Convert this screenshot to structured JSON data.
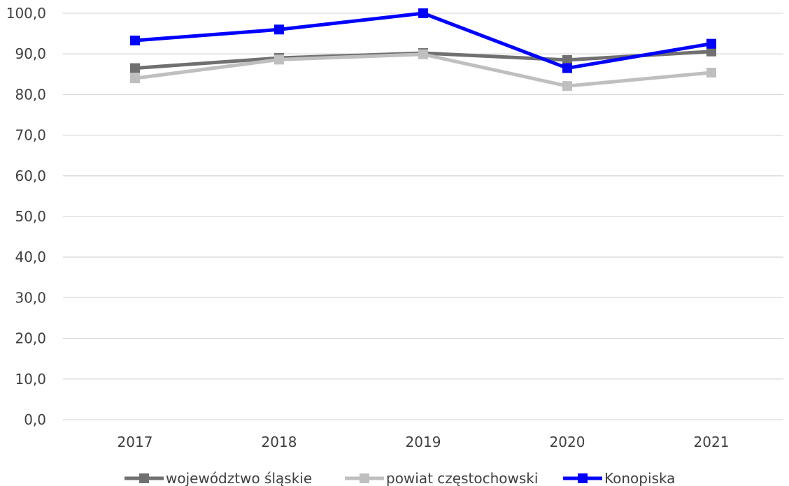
{
  "chart_data": {
    "type": "line",
    "categories": [
      "2017",
      "2018",
      "2019",
      "2020",
      "2021"
    ],
    "series": [
      {
        "name": "województwo śląskie",
        "color": "#707070",
        "values": [
          86.5,
          89.0,
          90.2,
          88.5,
          90.6
        ]
      },
      {
        "name": "powiat częstochowski",
        "color": "#bfbfbf",
        "values": [
          84.0,
          88.6,
          89.9,
          82.1,
          85.4
        ]
      },
      {
        "name": "Konopiska",
        "color": "#0000ff",
        "values": [
          93.3,
          96.0,
          100.0,
          86.5,
          92.5
        ]
      }
    ],
    "y_ticks": [
      "0,0",
      "10,0",
      "20,0",
      "30,0",
      "40,0",
      "50,0",
      "60,0",
      "70,0",
      "80,0",
      "90,0",
      "100,0"
    ],
    "ylim": [
      0,
      100
    ],
    "grid": true,
    "legend_position": "bottom"
  }
}
